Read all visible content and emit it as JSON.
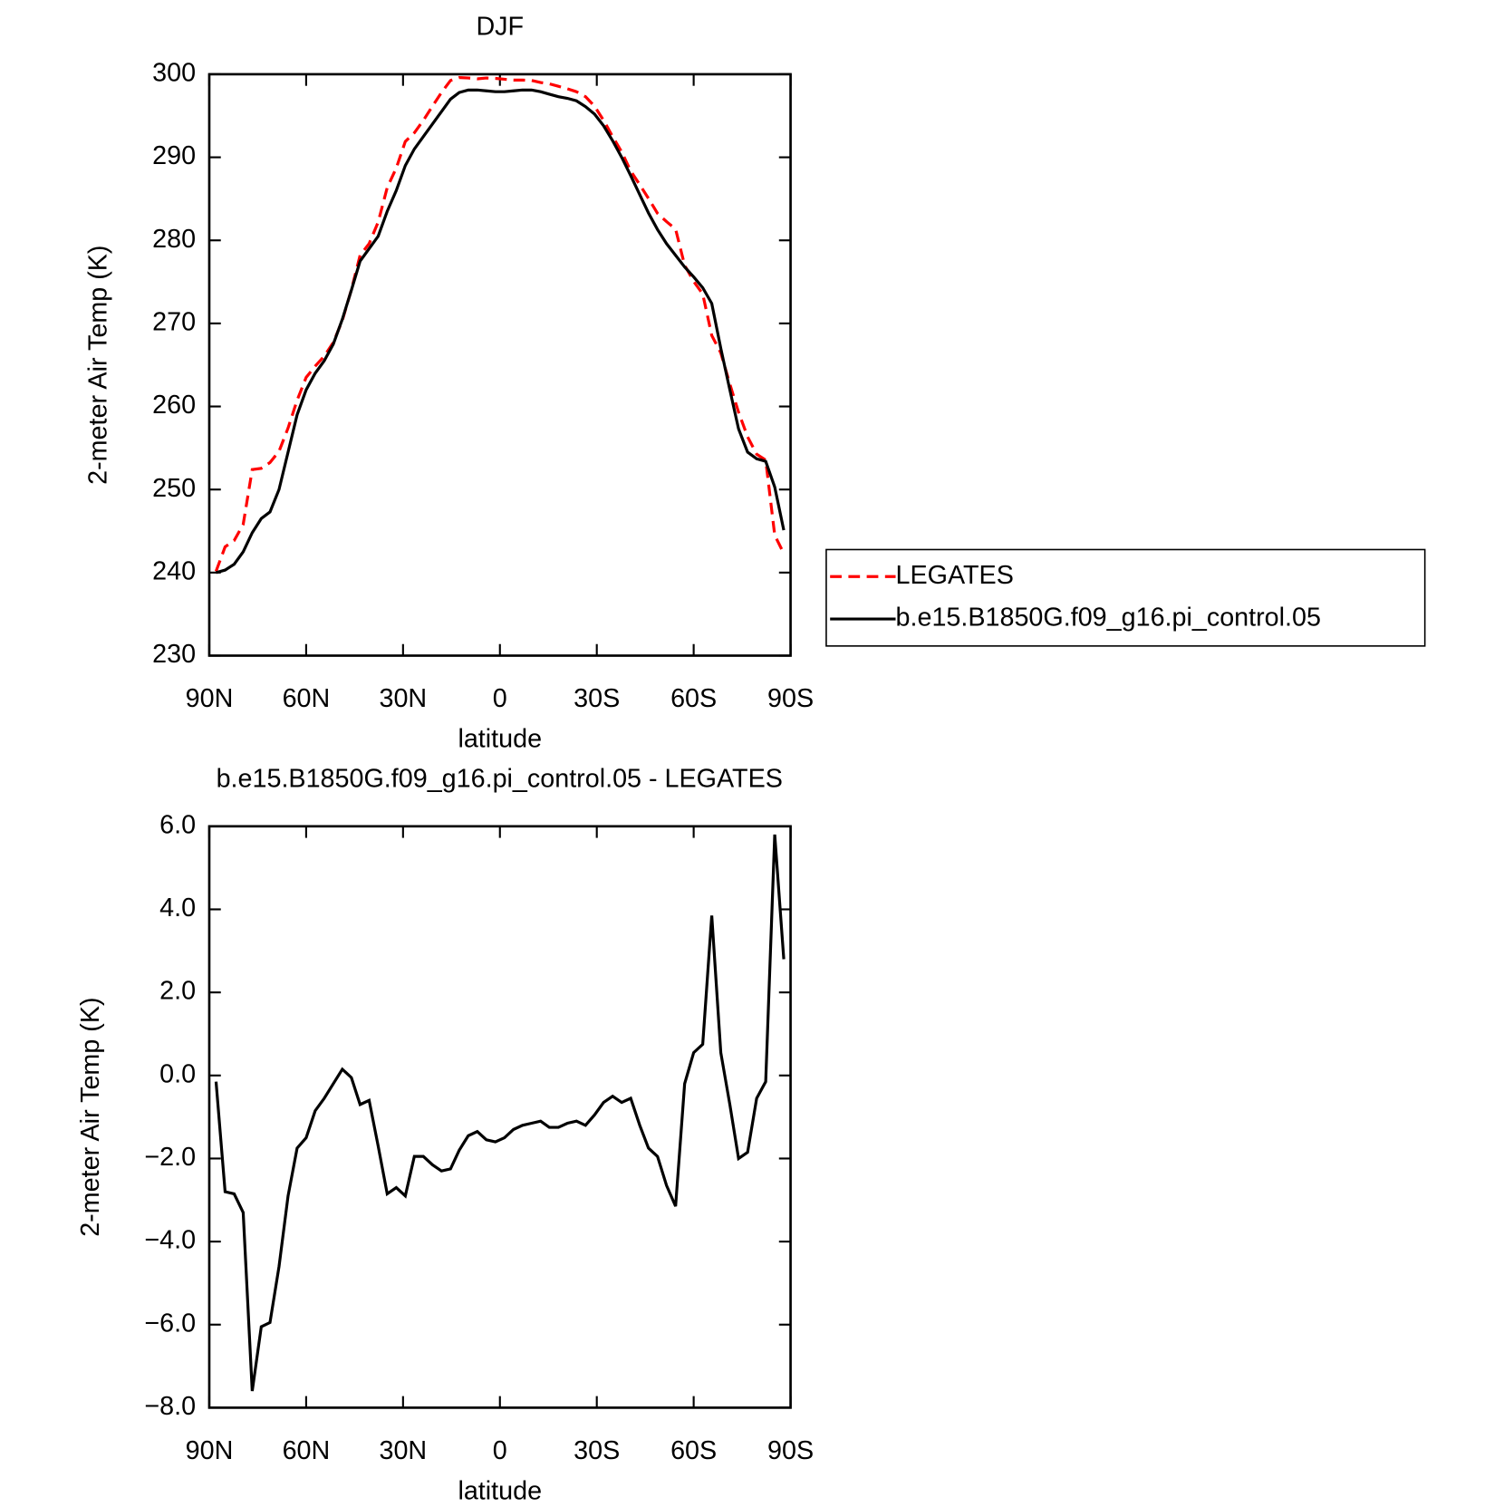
{
  "chart_data": [
    {
      "type": "line",
      "title": "DJF",
      "xlabel": "latitude",
      "ylabel": "2-meter Air Temp (K)",
      "x": [
        87.9,
        85.1,
        82.3,
        79.5,
        76.7,
        73.9,
        71.2,
        68.4,
        65.6,
        62.8,
        60.0,
        57.2,
        54.4,
        51.6,
        48.8,
        46.0,
        43.3,
        40.5,
        37.7,
        34.9,
        32.1,
        29.3,
        26.5,
        23.7,
        20.9,
        18.1,
        15.3,
        12.6,
        9.8,
        7.0,
        4.2,
        1.4,
        -1.4,
        -4.2,
        -7.0,
        -9.8,
        -12.6,
        -15.3,
        -18.1,
        -20.9,
        -23.7,
        -26.5,
        -29.3,
        -32.1,
        -34.9,
        -37.7,
        -40.5,
        -43.3,
        -46.0,
        -48.8,
        -51.6,
        -54.4,
        -57.2,
        -60.0,
        -62.8,
        -65.6,
        -68.4,
        -71.2,
        -73.9,
        -76.7,
        -79.5,
        -82.3,
        -85.1,
        -87.9
      ],
      "series": [
        {
          "name": "LEGATES",
          "color": "#ff0000",
          "dash": true,
          "values": [
            240.15,
            243.1,
            243.85,
            245.8,
            252.4,
            252.55,
            253.25,
            254.6,
            257.4,
            260.75,
            263.5,
            264.85,
            266.05,
            267.7,
            270.35,
            274.05,
            278.2,
            279.6,
            282.2,
            286.35,
            288.7,
            291.9,
            292.95,
            294.45,
            296.15,
            297.8,
            299.25,
            299.6,
            299.55,
            299.45,
            299.55,
            299.5,
            299.4,
            299.3,
            299.3,
            299.25,
            299.0,
            298.85,
            298.55,
            298.25,
            297.9,
            297.3,
            296.15,
            294.45,
            292.5,
            290.65,
            288.35,
            286.7,
            285.05,
            283.25,
            282.25,
            281.35,
            277.0,
            275.05,
            273.55,
            268.55,
            266.45,
            262.7,
            259.3,
            256.35,
            254.25,
            253.55,
            244.5,
            242.3
          ]
        },
        {
          "name": "b.e15.B1850G.f09_g16.pi_control.05",
          "color": "#000000",
          "dash": false,
          "values": [
            240,
            240.3,
            241,
            242.5,
            244.8,
            246.5,
            247.3,
            250,
            254.5,
            259,
            262,
            264,
            265.5,
            267.5,
            270.5,
            274,
            277.5,
            279,
            280.5,
            283.5,
            286,
            289,
            291,
            292.5,
            294,
            295.5,
            297,
            297.8,
            298.1,
            298.1,
            298,
            297.9,
            297.9,
            298,
            298.1,
            298.1,
            297.9,
            297.6,
            297.3,
            297.1,
            296.8,
            296.1,
            295.2,
            293.8,
            292,
            290,
            287.8,
            285.5,
            283.3,
            281.3,
            279.6,
            278.2,
            276.8,
            275.6,
            274.3,
            272.4,
            267,
            262,
            257.3,
            254.5,
            253.7,
            253.4,
            250.3,
            245.1
          ]
        }
      ],
      "xlim": [
        90,
        -90
      ],
      "xticks": [
        {
          "value": 90,
          "label": "90N"
        },
        {
          "value": 60,
          "label": "60N"
        },
        {
          "value": 30,
          "label": "30N"
        },
        0,
        {
          "value": -30,
          "label": "30S"
        },
        {
          "value": -60,
          "label": "60S"
        },
        {
          "value": -90,
          "label": "90S"
        }
      ],
      "ylim": [
        230,
        300
      ],
      "yticks": [
        230,
        240,
        250,
        260,
        270,
        280,
        290,
        300
      ],
      "legend": "right"
    },
    {
      "type": "line",
      "title": "b.e15.B1850G.f09_g16.pi_control.05 - LEGATES",
      "xlabel": "latitude",
      "ylabel": "2-meter Air Temp (K)",
      "x": [
        87.9,
        85.1,
        82.3,
        79.5,
        76.7,
        73.9,
        71.2,
        68.4,
        65.6,
        62.8,
        60.0,
        57.2,
        54.4,
        51.6,
        48.8,
        46.0,
        43.3,
        40.5,
        37.7,
        34.9,
        32.1,
        29.3,
        26.5,
        23.7,
        20.9,
        18.1,
        15.3,
        12.6,
        9.8,
        7.0,
        4.2,
        1.4,
        -1.4,
        -4.2,
        -7.0,
        -9.8,
        -12.6,
        -15.3,
        -18.1,
        -20.9,
        -23.7,
        -26.5,
        -29.3,
        -32.1,
        -34.9,
        -37.7,
        -40.5,
        -43.3,
        -46.0,
        -48.8,
        -51.6,
        -54.4,
        -57.2,
        -60.0,
        -62.8,
        -65.6,
        -68.4,
        -71.2,
        -73.9,
        -76.7,
        -79.5,
        -82.3,
        -85.1,
        -87.9
      ],
      "series": [
        {
          "color": "#000000",
          "dash": false,
          "values": [
            -0.15,
            -2.8,
            -2.85,
            -3.3,
            -7.6,
            -6.05,
            -5.95,
            -4.6,
            -2.9,
            -1.75,
            -1.5,
            -0.85,
            -0.55,
            -0.2,
            0.15,
            -0.05,
            -0.7,
            -0.6,
            -1.7,
            -2.85,
            -2.7,
            -2.9,
            -1.95,
            -1.95,
            -2.15,
            -2.3,
            -2.25,
            -1.8,
            -1.45,
            -1.35,
            -1.55,
            -1.6,
            -1.5,
            -1.3,
            -1.2,
            -1.15,
            -1.1,
            -1.25,
            -1.25,
            -1.15,
            -1.1,
            -1.2,
            -0.95,
            -0.65,
            -0.5,
            -0.65,
            -0.55,
            -1.2,
            -1.75,
            -1.95,
            -2.65,
            -3.15,
            -0.2,
            0.55,
            0.75,
            3.85,
            0.55,
            -0.7,
            -2.0,
            -1.85,
            -0.55,
            -0.15,
            5.8,
            2.8
          ]
        }
      ],
      "xlim": [
        90,
        -90
      ],
      "xticks": [
        {
          "value": 90,
          "label": "90N"
        },
        {
          "value": 60,
          "label": "60N"
        },
        {
          "value": 30,
          "label": "30N"
        },
        0,
        {
          "value": -30,
          "label": "30S"
        },
        {
          "value": -60,
          "label": "60S"
        },
        {
          "value": -90,
          "label": "90S"
        }
      ],
      "ylim": [
        -8,
        6
      ],
      "yticks": [
        {
          "value": -8,
          "label": "−8.0"
        },
        {
          "value": -6,
          "label": "−6.0"
        },
        {
          "value": -4,
          "label": "−4.0"
        },
        {
          "value": -2,
          "label": "−2.0"
        },
        {
          "value": 0,
          "label": "0.0"
        },
        {
          "value": 2,
          "label": "2.0"
        },
        {
          "value": 4,
          "label": "4.0"
        },
        {
          "value": 6,
          "label": "6.0"
        }
      ]
    }
  ]
}
